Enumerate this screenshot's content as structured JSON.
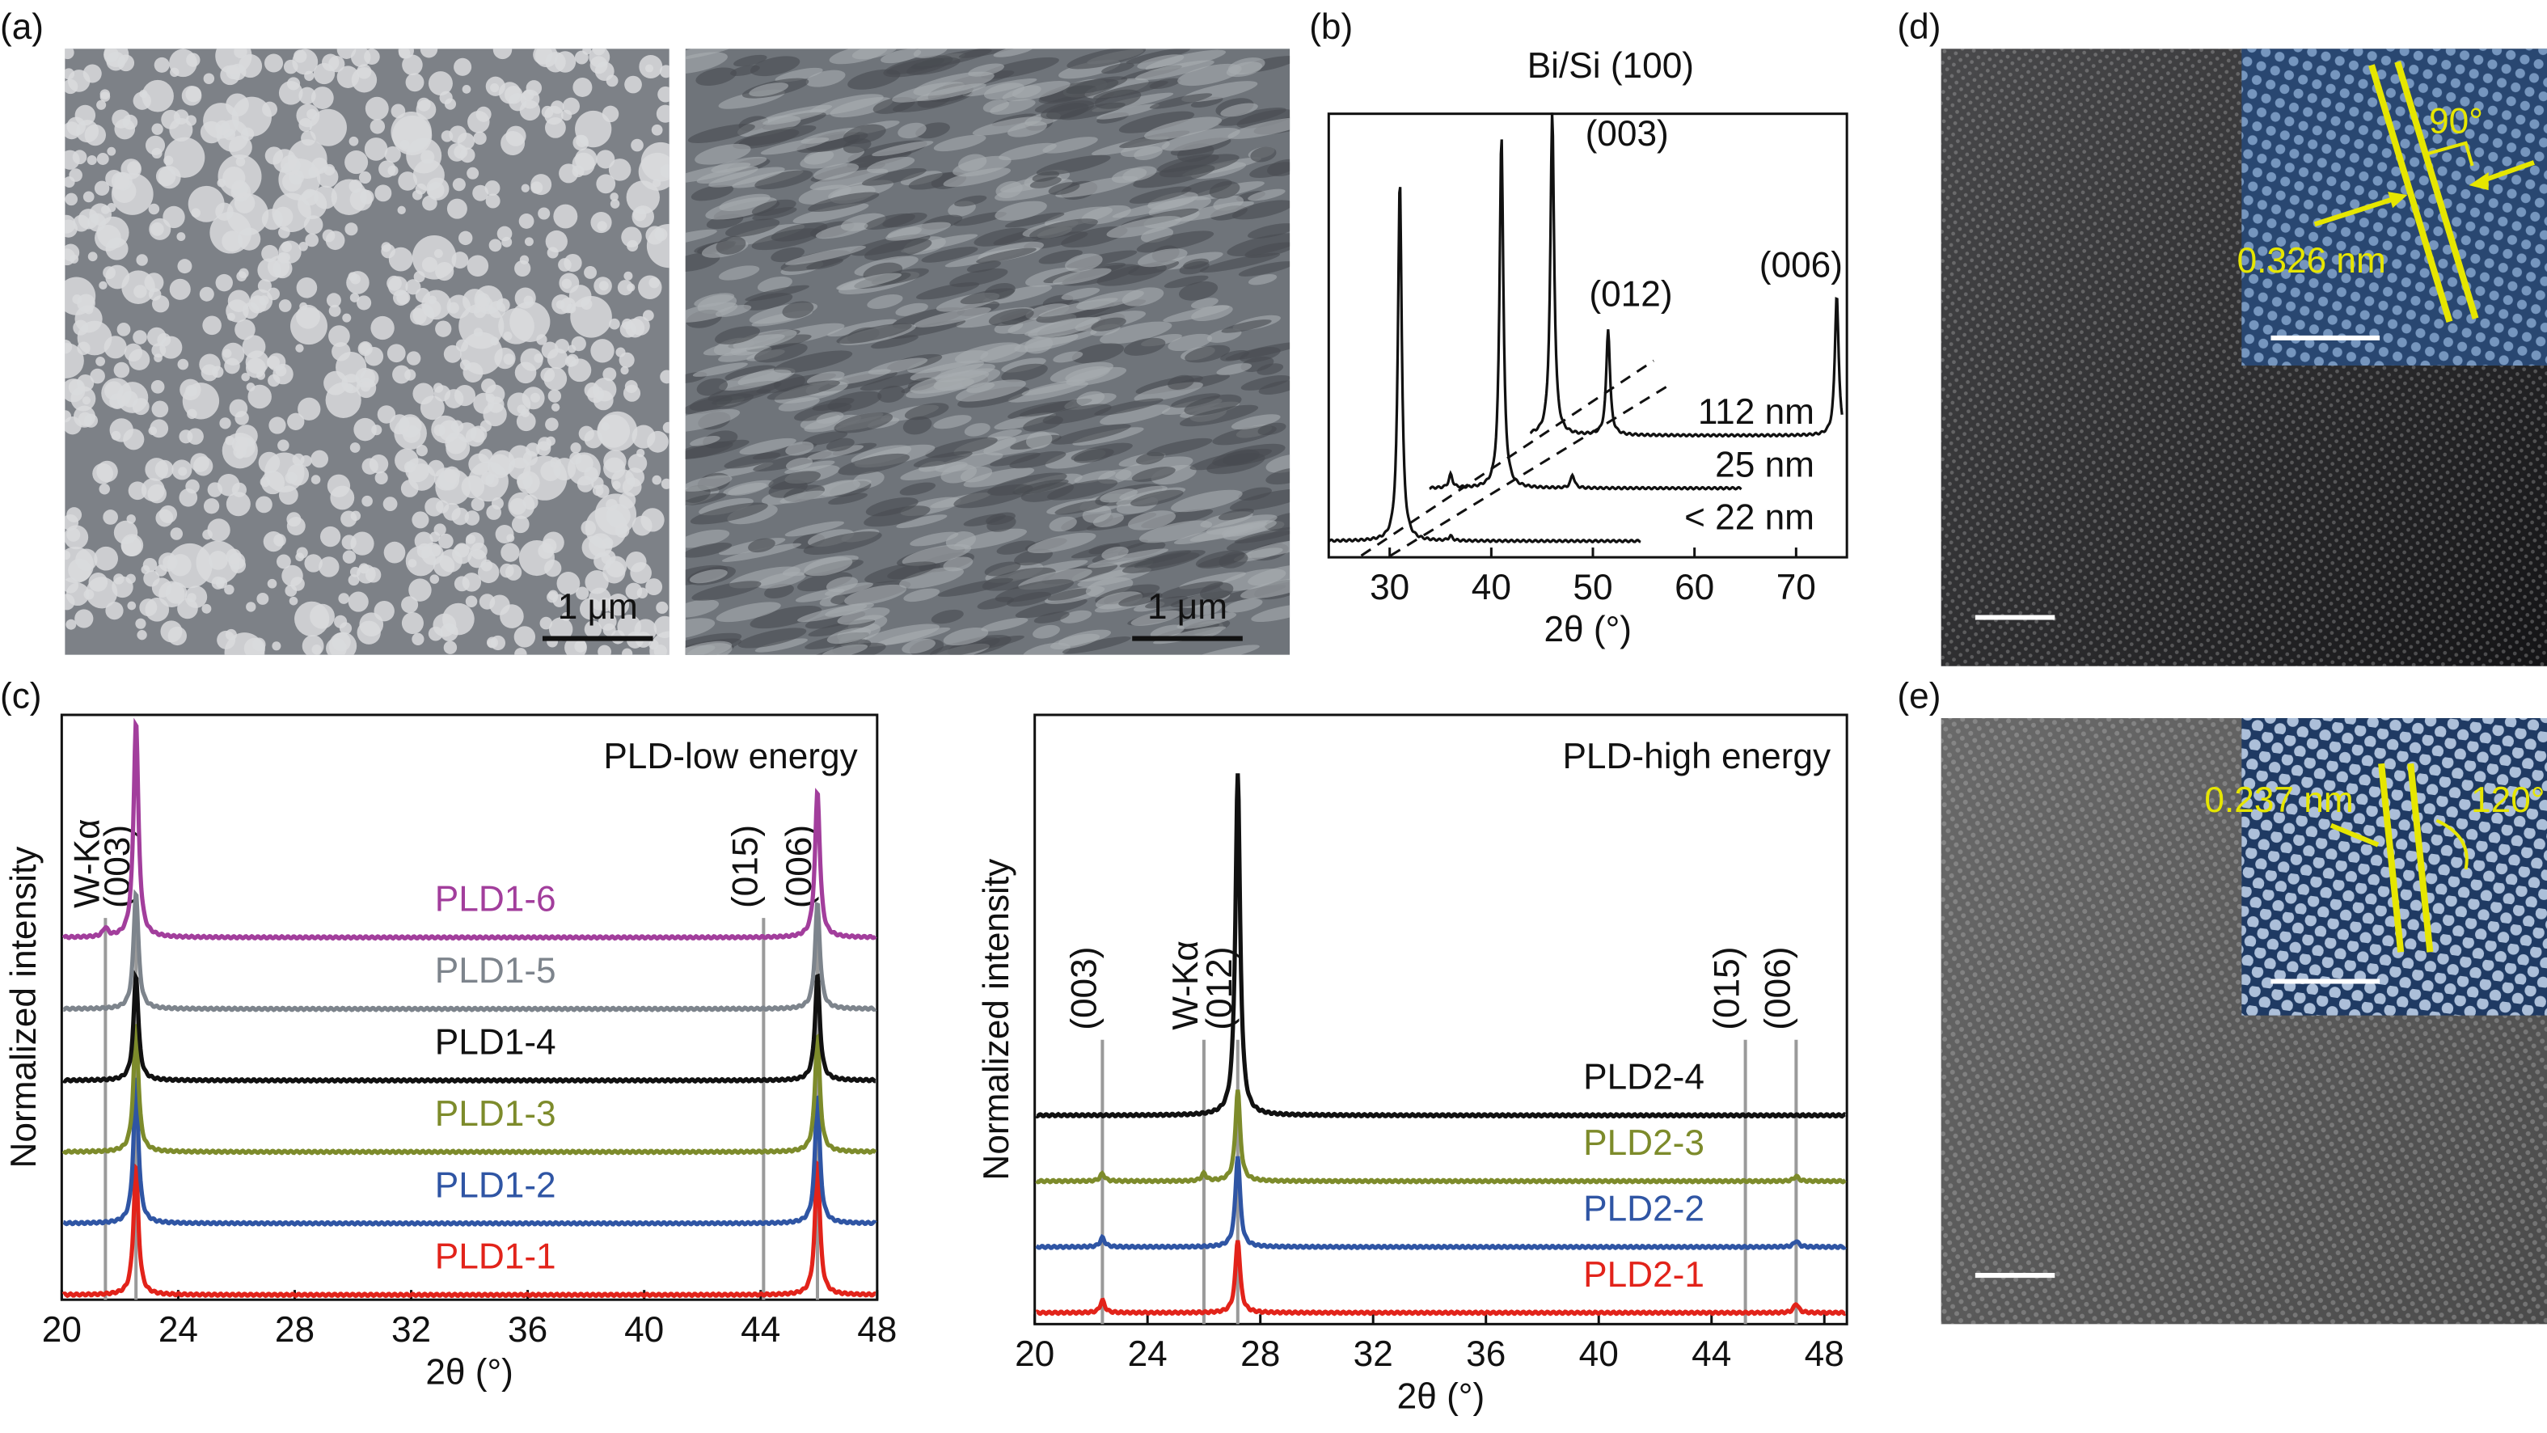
{
  "panel_labels": [
    "(a)",
    "(b)",
    "(c)",
    "(d)",
    "(e)"
  ],
  "panel_a": {
    "scale_bars": [
      "1 μm",
      "1 μm"
    ]
  },
  "chart_data": [
    {
      "type": "line",
      "title": "Bi/Si (100)",
      "xlabel": "2θ (°)",
      "xlim": [
        24,
        75
      ],
      "xticks": [
        30,
        40,
        50,
        60,
        70
      ],
      "series": [
        {
          "name": "< 22 nm",
          "color": "#111111",
          "x": [
            31.0,
            36.0
          ],
          "values": [
            0.82,
            0.01
          ]
        },
        {
          "name": "25 nm",
          "color": "#111111",
          "x": [
            36.0,
            41.0,
            48.0
          ],
          "values": [
            0.03,
            0.8,
            0.03
          ]
        },
        {
          "name": "112 nm",
          "color": "#111111",
          "x": [
            46.0,
            51.5,
            74.0
          ],
          "values": [
            0.73,
            0.24,
            0.32
          ],
          "peak_labels": [
            "(003)",
            "(012)",
            "(006)"
          ]
        }
      ]
    },
    {
      "type": "line",
      "title": "PLD-low energy",
      "xlabel": "2θ (°)",
      "ylabel": "Normalized intensity",
      "xlim": [
        20,
        48
      ],
      "xticks": [
        20,
        24,
        28,
        32,
        36,
        40,
        44,
        48
      ],
      "reference_lines": {
        "labels": [
          "W-Kα",
          "(003)",
          "(015)",
          "(006)"
        ],
        "x": [
          21.5,
          22.55,
          44.1,
          45.95
        ]
      },
      "series": [
        {
          "name": "PLD1-1",
          "color": "#e2231a",
          "x": [
            22.55,
            45.95
          ],
          "values": [
            0.22,
            0.23
          ]
        },
        {
          "name": "PLD1-2",
          "color": "#2f55a4",
          "x": [
            22.55,
            45.95
          ],
          "values": [
            0.25,
            0.22
          ]
        },
        {
          "name": "PLD1-3",
          "color": "#7d8b2b",
          "x": [
            22.55,
            45.95
          ],
          "values": [
            0.22,
            0.2
          ]
        },
        {
          "name": "PLD1-4",
          "color": "#111111",
          "x": [
            22.55,
            45.95
          ],
          "values": [
            0.18,
            0.18
          ]
        },
        {
          "name": "PLD1-5",
          "color": "#7d848c",
          "x": [
            22.55,
            45.95
          ],
          "values": [
            0.2,
            0.18
          ]
        },
        {
          "name": "PLD1-6",
          "color": "#a23e9c",
          "x": [
            21.5,
            22.55,
            45.95
          ],
          "values": [
            0.015,
            0.37,
            0.25
          ]
        }
      ]
    },
    {
      "type": "line",
      "title": "PLD-high energy",
      "xlabel": "2θ (°)",
      "ylabel": "Normalized intensity",
      "xlim": [
        20,
        48.8
      ],
      "xticks": [
        20,
        24,
        28,
        32,
        36,
        40,
        44,
        48
      ],
      "reference_lines": {
        "labels": [
          "(003)",
          "W-Kα",
          "(012)",
          "(015)",
          "(006)"
        ],
        "x": [
          22.4,
          26.0,
          27.2,
          45.2,
          47.0
        ]
      },
      "series": [
        {
          "name": "PLD2-1",
          "color": "#e2231a",
          "x": [
            22.4,
            27.2,
            47.0
          ],
          "values": [
            0.02,
            0.12,
            0.015
          ]
        },
        {
          "name": "PLD2-2",
          "color": "#2f55a4",
          "x": [
            22.4,
            27.2,
            47.0
          ],
          "values": [
            0.015,
            0.15,
            0.01
          ]
        },
        {
          "name": "PLD2-3",
          "color": "#7d8b2b",
          "x": [
            22.4,
            26.0,
            27.2,
            47.0
          ],
          "values": [
            0.012,
            0.012,
            0.15,
            0.008
          ]
        },
        {
          "name": "PLD2-4",
          "color": "#111111",
          "x": [
            27.2
          ],
          "values": [
            0.56
          ]
        }
      ]
    }
  ],
  "panel_d": {
    "inset_labels": [
      "90°",
      "0.326 nm"
    ]
  },
  "panel_e": {
    "inset_labels": [
      "0.237 nm",
      "120°"
    ]
  }
}
